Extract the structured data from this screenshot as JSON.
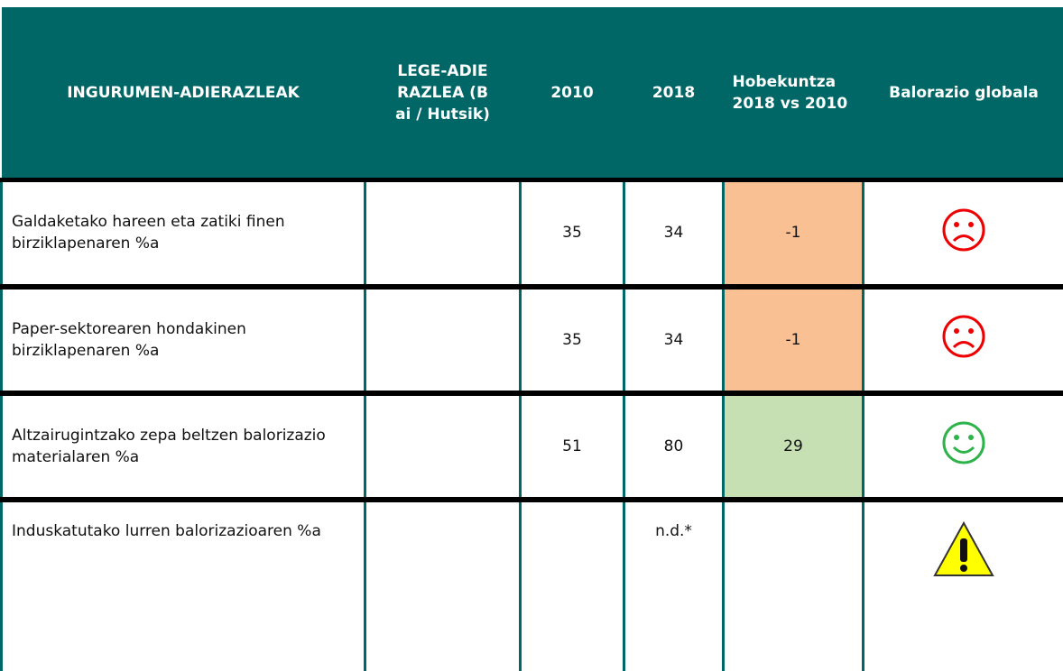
{
  "table": {
    "header": [
      "INGURUMEN-ADIERAZLEAK",
      "LEGE-ADIERAZLEA (Bai / Hutsik)",
      "2010",
      "2018",
      "Hobekuntza 2018 vs 2010",
      "Balorazio globala"
    ],
    "rows": [
      {
        "indicator": "Galdaketako hareen eta zatiki finen birziklapenaren %a",
        "y2010": 35,
        "y2018": 34,
        "change": -1
      },
      {
        "indicator": "Paper-sektorearen hondakinen birziklapenaren %a",
        "y2010": 35,
        "y2018": 34,
        "change": -1
      },
      {
        "indicator": "Altzairugintzako zepa beltzen balorizazio materialaren %a",
        "y2010": 51,
        "y2018": 80,
        "change": 29
      },
      {
        "indicator": "Induskatutako lurren balorizazioaren %a",
        "y2018": "n.d.*"
      }
    ]
  }
}
